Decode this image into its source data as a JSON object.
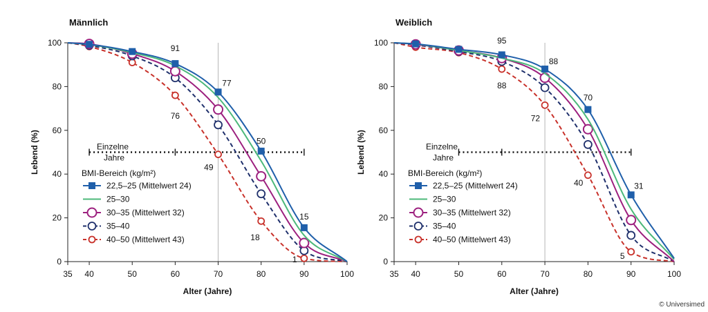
{
  "copyright": "© Universimed",
  "chart_data": [
    {
      "type": "line",
      "title": "Männlich",
      "xlabel": "Alter (Jahre)",
      "ylabel": "Lebend (%)",
      "xticks": [
        35,
        40,
        50,
        60,
        70,
        80,
        90,
        100
      ],
      "yticks": [
        0,
        20,
        40,
        60,
        80,
        100
      ],
      "xlim": [
        35,
        100
      ],
      "ylim": [
        0,
        100
      ],
      "reference_x": 70,
      "interval": {
        "label_line1": "Einzelne",
        "label_line2": "Jahre",
        "y": 50,
        "x_start": 40,
        "x_end": 90,
        "ticks": [
          40,
          60,
          90
        ]
      },
      "legend_title": "BMI-Bereich (kg/m²)",
      "series": [
        {
          "name": "22,5–25 (Mittelwert 24)",
          "color": "#1f5faa",
          "style": "solid",
          "marker": "square",
          "x": [
            35,
            40,
            50,
            60,
            70,
            80,
            90,
            100
          ],
          "y": [
            100,
            99.3,
            96,
            90.5,
            77.5,
            50.5,
            15.5,
            0
          ],
          "points": [
            [
              40,
              99.3
            ],
            [
              50,
              96
            ],
            [
              60,
              90.5
            ],
            [
              70,
              77.5
            ],
            [
              80,
              50.5
            ],
            [
              90,
              15.5
            ]
          ]
        },
        {
          "name": "25–30",
          "color": "#4cb87a",
          "style": "solid",
          "marker": "none",
          "x": [
            35,
            40,
            50,
            60,
            70,
            80,
            90,
            100
          ],
          "y": [
            100,
            99.2,
            95.5,
            89.5,
            75,
            46,
            12,
            0
          ],
          "points": []
        },
        {
          "name": "30–35 (Mittelwert 32)",
          "color": "#9c1f7e",
          "style": "solid",
          "marker": "circle-large",
          "x": [
            35,
            40,
            50,
            60,
            70,
            80,
            90,
            100
          ],
          "y": [
            100,
            99.5,
            95,
            87,
            69.5,
            39,
            8.5,
            0
          ],
          "points": [
            [
              40,
              99.5
            ],
            [
              50,
              95
            ],
            [
              60,
              87
            ],
            [
              70,
              69.5
            ],
            [
              80,
              39
            ],
            [
              90,
              8.5
            ]
          ]
        },
        {
          "name": "35–40",
          "color": "#1e2f6b",
          "style": "dashed",
          "marker": "circle",
          "x": [
            35,
            40,
            50,
            60,
            70,
            80,
            90,
            100
          ],
          "y": [
            100,
            98.8,
            94,
            84,
            62.5,
            31,
            5,
            0
          ],
          "points": [
            [
              40,
              98.8
            ],
            [
              50,
              94
            ],
            [
              60,
              84
            ],
            [
              70,
              62.5
            ],
            [
              80,
              31
            ],
            [
              90,
              5
            ]
          ]
        },
        {
          "name": "40–50 (Mittelwert 43)",
          "color": "#c8312a",
          "style": "dashed",
          "marker": "circle-small",
          "x": [
            35,
            40,
            50,
            60,
            70,
            80,
            90,
            100
          ],
          "y": [
            100,
            98.3,
            91,
            76,
            49,
            18.5,
            1.5,
            0
          ],
          "points": [
            [
              40,
              98.3
            ],
            [
              50,
              91
            ],
            [
              60,
              76
            ],
            [
              70,
              49
            ],
            [
              80,
              18.5
            ],
            [
              90,
              1.5
            ]
          ]
        }
      ],
      "annotations": [
        {
          "text": "91",
          "x": 60,
          "y": 97.5
        },
        {
          "text": "77",
          "x": 72,
          "y": 81.5
        },
        {
          "text": "50",
          "x": 80,
          "y": 55
        },
        {
          "text": "15",
          "x": 90,
          "y": 20.5
        },
        {
          "text": "76",
          "x": 60,
          "y": 66.5
        },
        {
          "text": "49",
          "x": 67.8,
          "y": 43
        },
        {
          "text": "18",
          "x": 78.6,
          "y": 11
        },
        {
          "text": "1",
          "x": 87.8,
          "y": 1
        }
      ]
    },
    {
      "type": "line",
      "title": "Weiblich",
      "xlabel": "Alter (Jahre)",
      "ylabel": "Lebend (%)",
      "xticks": [
        35,
        40,
        50,
        60,
        70,
        80,
        90,
        100
      ],
      "yticks": [
        0,
        20,
        40,
        60,
        80,
        100
      ],
      "xlim": [
        35,
        100
      ],
      "ylim": [
        0,
        100
      ],
      "reference_x": 70,
      "interval": {
        "label_line1": "Einzelne",
        "label_line2": "Jahre",
        "y": 50,
        "x_start": 50,
        "x_end": 90,
        "ticks": [
          50,
          60,
          90
        ]
      },
      "legend_title": "BMI-Bereich (kg/m²)",
      "series": [
        {
          "name": "22,5–25 (Mittelwert 24)",
          "color": "#1f5faa",
          "style": "solid",
          "marker": "square",
          "x": [
            35,
            40,
            50,
            60,
            70,
            80,
            90,
            100
          ],
          "y": [
            100,
            99.5,
            97,
            94.5,
            88,
            69.5,
            30.5,
            1.5
          ],
          "points": [
            [
              40,
              99.5
            ],
            [
              50,
              97
            ],
            [
              60,
              94.5
            ],
            [
              70,
              88
            ],
            [
              80,
              69.5
            ],
            [
              90,
              30.5
            ]
          ]
        },
        {
          "name": "25–30",
          "color": "#4cb87a",
          "style": "solid",
          "marker": "none",
          "x": [
            35,
            40,
            50,
            60,
            70,
            80,
            90,
            100
          ],
          "y": [
            100,
            99.4,
            96.5,
            93,
            86,
            65,
            24,
            1
          ],
          "points": []
        },
        {
          "name": "30–35 (Mittelwert 32)",
          "color": "#9c1f7e",
          "style": "solid",
          "marker": "circle-large",
          "x": [
            35,
            40,
            50,
            60,
            70,
            80,
            90,
            100
          ],
          "y": [
            100,
            99.3,
            96.5,
            93,
            84,
            60.5,
            19,
            0
          ],
          "points": [
            [
              40,
              99.3
            ],
            [
              50,
              96.5
            ],
            [
              60,
              93
            ],
            [
              70,
              84
            ],
            [
              80,
              60.5
            ],
            [
              90,
              19
            ]
          ]
        },
        {
          "name": "35–40",
          "color": "#1e2f6b",
          "style": "dashed",
          "marker": "circle",
          "x": [
            35,
            40,
            50,
            60,
            70,
            80,
            90,
            100
          ],
          "y": [
            100,
            99,
            96,
            91.5,
            79.5,
            53.5,
            12,
            0
          ],
          "points": [
            [
              40,
              99
            ],
            [
              50,
              96
            ],
            [
              60,
              91.5
            ],
            [
              70,
              79.5
            ],
            [
              80,
              53.5
            ],
            [
              90,
              12
            ]
          ]
        },
        {
          "name": "40–50 (Mittelwert 43)",
          "color": "#c8312a",
          "style": "dashed",
          "marker": "circle-small",
          "x": [
            35,
            40,
            50,
            60,
            70,
            80,
            90,
            100
          ],
          "y": [
            100,
            98,
            95.5,
            88,
            71.5,
            39.5,
            4.5,
            0
          ],
          "points": [
            [
              40,
              98
            ],
            [
              50,
              95.5
            ],
            [
              60,
              88
            ],
            [
              70,
              71.5
            ],
            [
              80,
              39.5
            ],
            [
              90,
              4.5
            ]
          ]
        }
      ],
      "annotations": [
        {
          "text": "95",
          "x": 60,
          "y": 101
        },
        {
          "text": "88",
          "x": 72,
          "y": 91.5
        },
        {
          "text": "70",
          "x": 80,
          "y": 75
        },
        {
          "text": "31",
          "x": 91.8,
          "y": 34.5
        },
        {
          "text": "88",
          "x": 60,
          "y": 80.5
        },
        {
          "text": "72",
          "x": 67.8,
          "y": 65.5
        },
        {
          "text": "40",
          "x": 77.8,
          "y": 36
        },
        {
          "text": "5",
          "x": 88,
          "y": 2.5
        }
      ]
    }
  ]
}
